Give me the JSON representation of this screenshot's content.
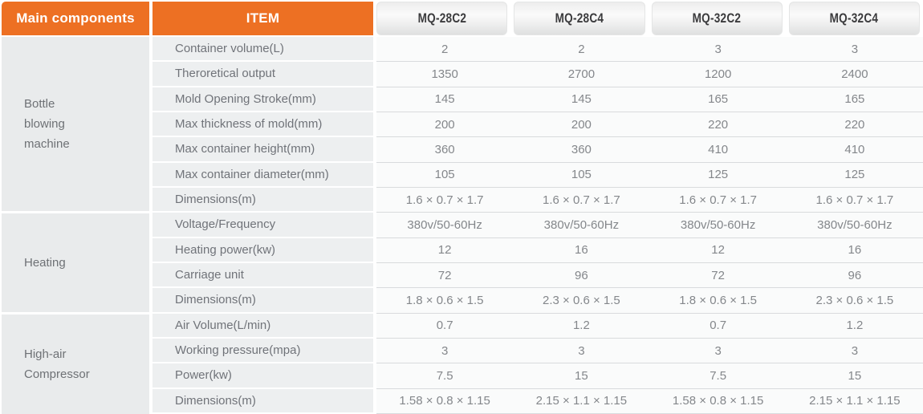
{
  "header": {
    "main_components_label": "Main components",
    "item_label": "ITEM",
    "models": [
      "MQ-28C2",
      "MQ-28C4",
      "MQ-32C2",
      "MQ-32C4"
    ]
  },
  "colors": {
    "accent_orange": "#ed7023",
    "section_cell_bg": "#e9ebec",
    "item_cell_bg": "#edeff0",
    "data_row_bg": "#fafbfb"
  },
  "sections": [
    {
      "name": "Bottle\nblowing\nmachine",
      "rows": [
        {
          "item": "Container volume(L)",
          "values": [
            "2",
            "2",
            "3",
            "3"
          ]
        },
        {
          "item": "Theroretical output",
          "values": [
            "1350",
            "2700",
            "1200",
            "2400"
          ]
        },
        {
          "item": "Mold Opening Stroke(mm)",
          "values": [
            "145",
            "145",
            "165",
            "165"
          ]
        },
        {
          "item": "Max thickness of mold(mm)",
          "values": [
            "200",
            "200",
            "220",
            "220"
          ]
        },
        {
          "item": "Max container height(mm)",
          "values": [
            "360",
            "360",
            "410",
            "410"
          ]
        },
        {
          "item": "Max container diameter(mm)",
          "values": [
            "105",
            "105",
            "125",
            "125"
          ]
        },
        {
          "item": "Dimensions(m)",
          "values": [
            "1.6 × 0.7 × 1.7",
            "1.6 × 0.7 × 1.7",
            "1.6 × 0.7 × 1.7",
            "1.6 × 0.7 × 1.7"
          ]
        }
      ]
    },
    {
      "name": "Heating",
      "rows": [
        {
          "item": "Voltage/Frequency",
          "values": [
            "380v/50-60Hz",
            "380v/50-60Hz",
            "380v/50-60Hz",
            "380v/50-60Hz"
          ]
        },
        {
          "item": "Heating power(kw)",
          "values": [
            "12",
            "16",
            "12",
            "16"
          ]
        },
        {
          "item": "Carriage unit",
          "values": [
            "72",
            "96",
            "72",
            "96"
          ]
        },
        {
          "item": "Dimensions(m)",
          "values": [
            "1.8 × 0.6 × 1.5",
            "2.3 × 0.6 × 1.5",
            "1.8 × 0.6 × 1.5",
            "2.3 × 0.6 × 1.5"
          ]
        }
      ]
    },
    {
      "name": "High-air\nCompressor",
      "rows": [
        {
          "item": "Air Volume(L/min)",
          "values": [
            "0.7",
            "1.2",
            "0.7",
            "1.2"
          ]
        },
        {
          "item": "Working pressure(mpa)",
          "values": [
            "3",
            "3",
            "3",
            "3"
          ]
        },
        {
          "item": "Power(kw)",
          "values": [
            "7.5",
            "15",
            "7.5",
            "15"
          ]
        },
        {
          "item": "Dimensions(m)",
          "values": [
            "1.58 × 0.8 × 1.15",
            "2.15 × 1.1 × 1.15",
            "1.58 × 0.8 × 1.15",
            "2.15 × 1.1 × 1.15"
          ]
        }
      ]
    }
  ]
}
